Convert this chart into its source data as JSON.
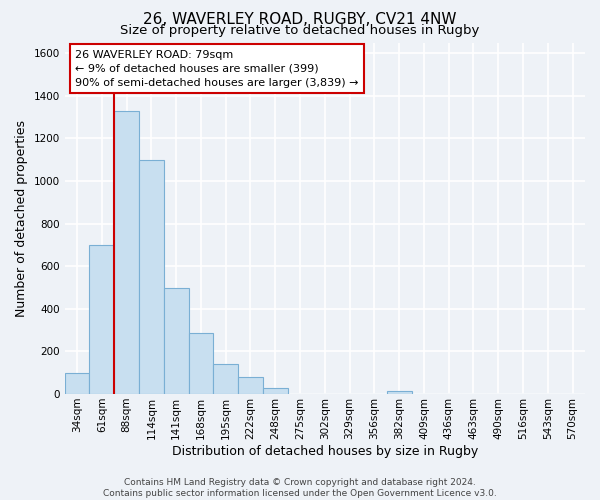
{
  "title": "26, WAVERLEY ROAD, RUGBY, CV21 4NW",
  "subtitle": "Size of property relative to detached houses in Rugby",
  "xlabel": "Distribution of detached houses by size in Rugby",
  "ylabel": "Number of detached properties",
  "bar_color": "#c8dff0",
  "bar_edge_color": "#7aafd4",
  "vline_color": "#cc0000",
  "annotation_text": "26 WAVERLEY ROAD: 79sqm\n← 9% of detached houses are smaller (399)\n90% of semi-detached houses are larger (3,839) →",
  "annotation_box_color": "#ffffff",
  "annotation_box_edge": "#cc0000",
  "footer": "Contains HM Land Registry data © Crown copyright and database right 2024.\nContains public sector information licensed under the Open Government Licence v3.0.",
  "categories": [
    "34sqm",
    "61sqm",
    "88sqm",
    "114sqm",
    "141sqm",
    "168sqm",
    "195sqm",
    "222sqm",
    "248sqm",
    "275sqm",
    "302sqm",
    "329sqm",
    "356sqm",
    "382sqm",
    "409sqm",
    "436sqm",
    "463sqm",
    "490sqm",
    "516sqm",
    "543sqm",
    "570sqm"
  ],
  "values": [
    100,
    700,
    1330,
    1100,
    500,
    285,
    140,
    80,
    30,
    0,
    0,
    0,
    0,
    15,
    0,
    0,
    0,
    0,
    0,
    0,
    0
  ],
  "ylim": [
    0,
    1650
  ],
  "yticks": [
    0,
    200,
    400,
    600,
    800,
    1000,
    1200,
    1400,
    1600
  ],
  "background_color": "#eef2f7",
  "grid_color": "#ffffff",
  "title_fontsize": 11,
  "subtitle_fontsize": 9.5,
  "tick_fontsize": 7.5,
  "ylabel_fontsize": 9,
  "xlabel_fontsize": 9,
  "footer_fontsize": 6.5,
  "annotation_fontsize": 8
}
